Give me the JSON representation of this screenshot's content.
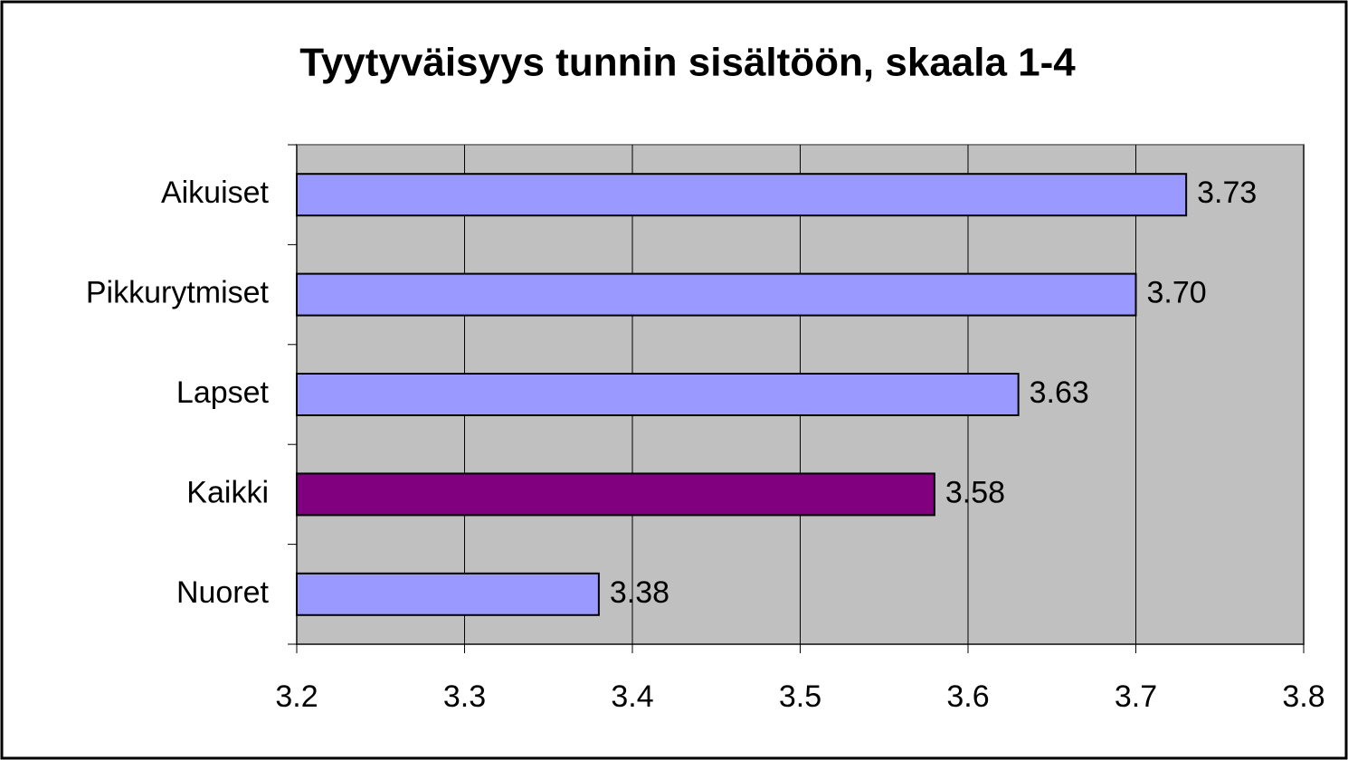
{
  "chart_data": {
    "type": "hbar",
    "title": "Tyytyväisyys tunnin sisältöön, skaala 1-4",
    "categories": [
      "Aikuiset",
      "Pikkurytmiset",
      "Lapset",
      "Kaikki",
      "Nuoret"
    ],
    "values": [
      3.73,
      3.7,
      3.63,
      3.58,
      3.38
    ],
    "value_labels": [
      "3.73",
      "3.70",
      "3.63",
      "3.58",
      "3.38"
    ],
    "colors": [
      "#9999ff",
      "#9999ff",
      "#9999ff",
      "#800080",
      "#9999ff"
    ],
    "xlim": [
      3.2,
      3.8
    ],
    "xticks": [
      3.2,
      3.3,
      3.4,
      3.5,
      3.6,
      3.7,
      3.8
    ],
    "grid": true
  }
}
